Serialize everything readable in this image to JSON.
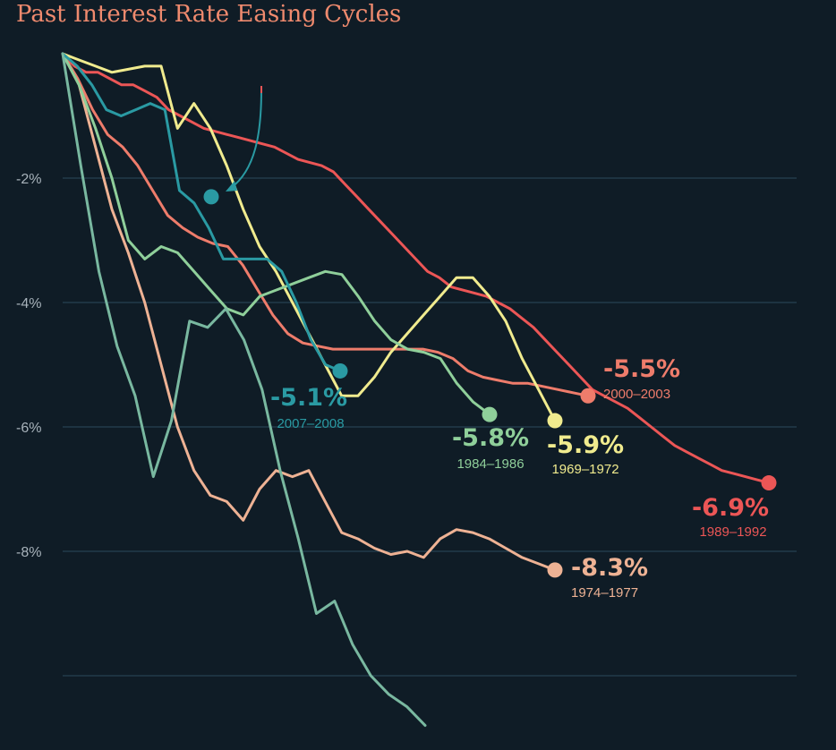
{
  "chart_data": {
    "type": "line",
    "title": "Past Interest Rate Easing Cycles",
    "xlabel": "",
    "ylabel": "",
    "ylim": [
      -10.8,
      0.2
    ],
    "y_ticks": [
      {
        "value": -2,
        "label": "-2%"
      },
      {
        "value": -4,
        "label": "-4%"
      },
      {
        "value": -6,
        "label": "-6%"
      },
      {
        "value": -8,
        "label": "-8%"
      }
    ],
    "gridlines": [
      -2,
      -4,
      -6,
      -8,
      -10
    ],
    "series": [
      {
        "name": "1974–1977",
        "label": "-8.3%",
        "period": "1974–1977",
        "color": "#eeb294",
        "values": [
          0,
          -0.5,
          -1.5,
          -2.5,
          -3.2,
          -4,
          -5,
          -6,
          -6.7,
          -7.1,
          -7.2,
          -7.5,
          -7.0,
          -6.7,
          -6.8,
          -6.7,
          -7.2,
          -7.7,
          -7.8,
          -7.95,
          -8.05,
          -8.0,
          -8.1,
          -7.8,
          -7.65,
          -7.7,
          -7.8,
          -7.95,
          -8.1,
          -8.2,
          -8.3
        ]
      },
      {
        "name": "1989–1992",
        "label": "-6.9%",
        "period": "1989–1992",
        "color": "#ec5656",
        "values": [
          0,
          -0.2,
          -0.3,
          -0.3,
          -0.4,
          -0.5,
          -0.5,
          -0.6,
          -0.7,
          -0.9,
          -1,
          -1.1,
          -1.2,
          -1.25,
          -1.3,
          -1.35,
          -1.4,
          -1.45,
          -1.5,
          -1.6,
          -1.7,
          -1.75,
          -1.8,
          -1.9,
          -2.1,
          -2.3,
          -2.5,
          -2.7,
          -2.9,
          -3.1,
          -3.3,
          -3.5,
          -3.6,
          -3.75,
          -3.8,
          -3.85,
          -3.9,
          -4.0,
          -4.1,
          -4.25,
          -4.4,
          -4.6,
          -4.8,
          -5.0,
          -5.2,
          -5.4,
          -5.5,
          -5.6,
          -5.7,
          -5.85,
          -6.0,
          -6.15,
          -6.3,
          -6.4,
          -6.5,
          -6.6,
          -6.7,
          -6.75,
          -6.8,
          -6.85,
          -6.9
        ]
      },
      {
        "name": "2000–2003",
        "label": "-5.5%",
        "period": "2000–2003",
        "color": "#ee7c6b",
        "values": [
          0,
          -0.4,
          -0.9,
          -1.3,
          -1.5,
          -1.8,
          -2.2,
          -2.6,
          -2.8,
          -2.95,
          -3.05,
          -3.1,
          -3.4,
          -3.8,
          -4.2,
          -4.5,
          -4.65,
          -4.7,
          -4.75,
          -4.75,
          -4.75,
          -4.75,
          -4.75,
          -4.75,
          -4.75,
          -4.8,
          -4.9,
          -5.1,
          -5.2,
          -5.25,
          -5.3,
          -5.3,
          -5.35,
          -5.4,
          -5.45,
          -5.5
        ]
      },
      {
        "name": "1969–1972",
        "label": "-5.9%",
        "period": "1969–1972",
        "color": "#f0eb8e",
        "values": [
          0,
          -0.1,
          -0.2,
          -0.3,
          -0.25,
          -0.2,
          -0.2,
          -1.2,
          -0.8,
          -1.2,
          -1.8,
          -2.5,
          -3.1,
          -3.5,
          -4.0,
          -4.5,
          -5.0,
          -5.5,
          -5.5,
          -5.2,
          -4.8,
          -4.5,
          -4.2,
          -3.9,
          -3.6,
          -3.6,
          -3.9,
          -4.3,
          -4.9,
          -5.4,
          -5.9
        ]
      },
      {
        "name": "1984–1986",
        "label": "-5.8%",
        "period": "1984–1986",
        "color": "#8fcf9a",
        "values": [
          0,
          -0.5,
          -1.2,
          -2.0,
          -3.0,
          -3.3,
          -3.1,
          -3.2,
          -3.5,
          -3.8,
          -4.1,
          -4.2,
          -3.9,
          -3.8,
          -3.7,
          -3.6,
          -3.5,
          -3.55,
          -3.9,
          -4.3,
          -4.6,
          -4.75,
          -4.8,
          -4.9,
          -5.3,
          -5.6,
          -5.8
        ]
      },
      {
        "name": "2007–2008",
        "label": "-5.1%",
        "period": "2007–2008",
        "color": "#2a9aa3",
        "values": [
          0,
          -0.2,
          -0.5,
          -0.9,
          -1.0,
          -0.9,
          -0.8,
          -0.9,
          -2.2,
          -2.4,
          -2.8,
          -3.3,
          -3.3,
          -3.3,
          -3.3,
          -3.5,
          -4.0,
          -4.6,
          -5.0,
          -5.1
        ]
      },
      {
        "name": "unlabeled",
        "label": "",
        "period": "",
        "color": "#79b8a0",
        "values": [
          0,
          -1.8,
          -3.5,
          -4.7,
          -5.5,
          -6.8,
          -5.9,
          -4.3,
          -4.4,
          -4.1,
          -4.6,
          -5.4,
          -6.7,
          -7.8,
          -9.0,
          -8.8,
          -9.5,
          -10.0,
          -10.3,
          -10.5,
          -10.8
        ]
      }
    ],
    "arrow_target_value": -2.3
  }
}
